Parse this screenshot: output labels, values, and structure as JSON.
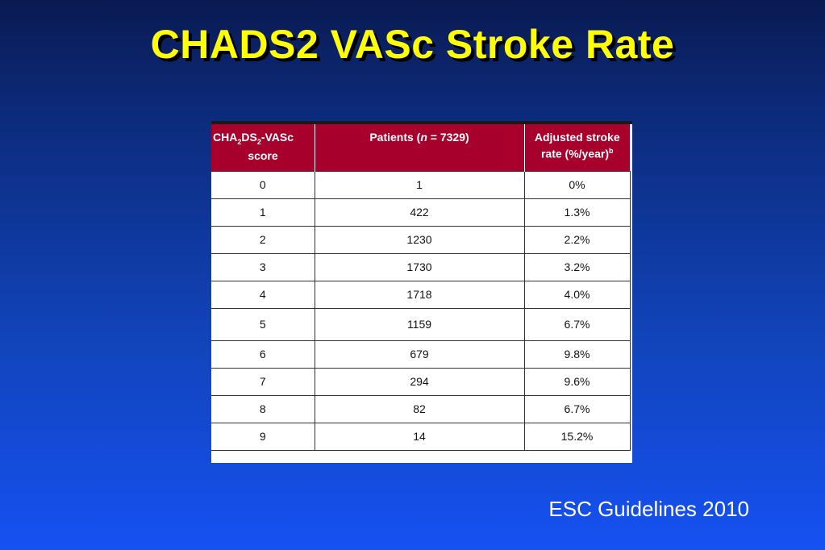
{
  "title": "CHADS2 VASc Stroke Rate",
  "table": {
    "headers": {
      "score": {
        "line1_a": "CHA",
        "line1_sub1": "2",
        "line1_b": "DS",
        "line1_sub2": "2",
        "line1_c": "-VASc",
        "line2": "score"
      },
      "patients": {
        "prefix": "Patients (",
        "n": "n",
        "suffix": " = 7329)"
      },
      "rate": {
        "line1": "Adjusted stroke",
        "line2": "rate (%/year)",
        "sup": "b"
      }
    },
    "rows": [
      {
        "score": "0",
        "patients": "1",
        "rate": "0%"
      },
      {
        "score": "1",
        "patients": "422",
        "rate": "1.3%"
      },
      {
        "score": "2",
        "patients": "1230",
        "rate": "2.2%"
      },
      {
        "score": "3",
        "patients": "1730",
        "rate": "3.2%"
      },
      {
        "score": "4",
        "patients": "1718",
        "rate": "4.0%"
      },
      {
        "score": "5",
        "patients": "1159",
        "rate": "6.7%"
      },
      {
        "score": "6",
        "patients": "679",
        "rate": "9.8%"
      },
      {
        "score": "7",
        "patients": "294",
        "rate": "9.6%"
      },
      {
        "score": "8",
        "patients": "82",
        "rate": "6.7%"
      },
      {
        "score": "9",
        "patients": "14",
        "rate": "15.2%"
      }
    ]
  },
  "source": "ESC Guidelines 2010",
  "colors": {
    "title": "#ffff00",
    "header_bg": "#a8002c",
    "background_top": "#0a1a52",
    "background_bottom": "#1651f2"
  }
}
